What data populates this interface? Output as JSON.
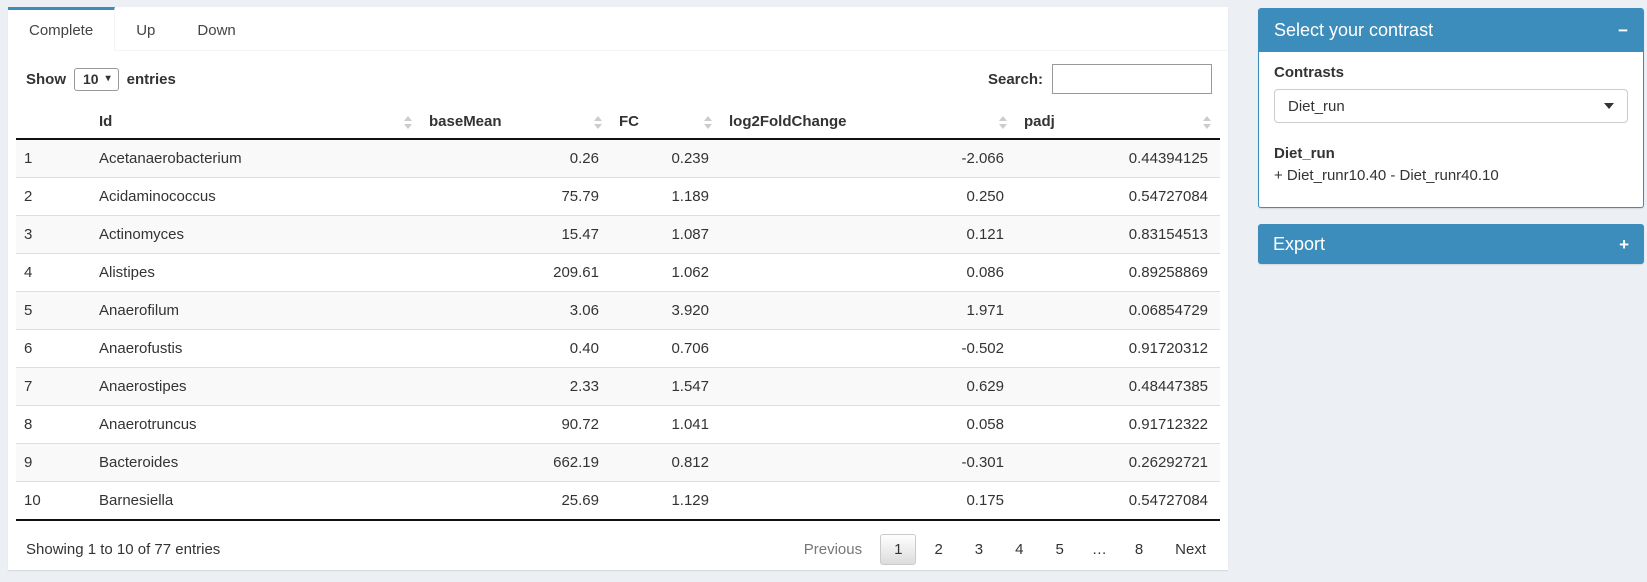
{
  "colors": {
    "primary": "#3c8dbc",
    "page_bg": "#ecf0f5",
    "stripe": "#f9f9f9"
  },
  "tabs": [
    {
      "label": "Complete",
      "active": true
    },
    {
      "label": "Up",
      "active": false
    },
    {
      "label": "Down",
      "active": false
    }
  ],
  "controls": {
    "show_label": "Show",
    "page_length": "10",
    "entries_label": "entries",
    "search_label": "Search:",
    "search_value": ""
  },
  "table": {
    "columns": [
      "Id",
      "baseMean",
      "FC",
      "log2FoldChange",
      "padj"
    ],
    "rows": [
      {
        "n": "1",
        "id": "Acetanaerobacterium",
        "baseMean": "0.26",
        "fc": "0.239",
        "log2fc": "-2.066",
        "padj": "0.44394125"
      },
      {
        "n": "2",
        "id": "Acidaminococcus",
        "baseMean": "75.79",
        "fc": "1.189",
        "log2fc": "0.250",
        "padj": "0.54727084"
      },
      {
        "n": "3",
        "id": "Actinomyces",
        "baseMean": "15.47",
        "fc": "1.087",
        "log2fc": "0.121",
        "padj": "0.83154513"
      },
      {
        "n": "4",
        "id": "Alistipes",
        "baseMean": "209.61",
        "fc": "1.062",
        "log2fc": "0.086",
        "padj": "0.89258869"
      },
      {
        "n": "5",
        "id": "Anaerofilum",
        "baseMean": "3.06",
        "fc": "3.920",
        "log2fc": "1.971",
        "padj": "0.06854729"
      },
      {
        "n": "6",
        "id": "Anaerofustis",
        "baseMean": "0.40",
        "fc": "0.706",
        "log2fc": "-0.502",
        "padj": "0.91720312"
      },
      {
        "n": "7",
        "id": "Anaerostipes",
        "baseMean": "2.33",
        "fc": "1.547",
        "log2fc": "0.629",
        "padj": "0.48447385"
      },
      {
        "n": "8",
        "id": "Anaerotruncus",
        "baseMean": "90.72",
        "fc": "1.041",
        "log2fc": "0.058",
        "padj": "0.91712322"
      },
      {
        "n": "9",
        "id": "Bacteroides",
        "baseMean": "662.19",
        "fc": "0.812",
        "log2fc": "-0.301",
        "padj": "0.26292721"
      },
      {
        "n": "10",
        "id": "Barnesiella",
        "baseMean": "25.69",
        "fc": "1.129",
        "log2fc": "0.175",
        "padj": "0.54727084"
      }
    ]
  },
  "footer": {
    "info": "Showing 1 to 10 of 77 entries",
    "pagination": {
      "previous": "Previous",
      "pages": [
        "1",
        "2",
        "3",
        "4",
        "5",
        "…",
        "8"
      ],
      "active_page": "1",
      "next": "Next"
    }
  },
  "contrast_panel": {
    "title": "Select your contrast",
    "collapse_icon": "−",
    "contrasts_label": "Contrasts",
    "selected_contrast": "Diet_run",
    "contrast_name": "Diet_run",
    "contrast_formula": "+ Diet_runr10.40 - Diet_runr40.10"
  },
  "export_panel": {
    "title": "Export",
    "expand_icon": "+"
  }
}
